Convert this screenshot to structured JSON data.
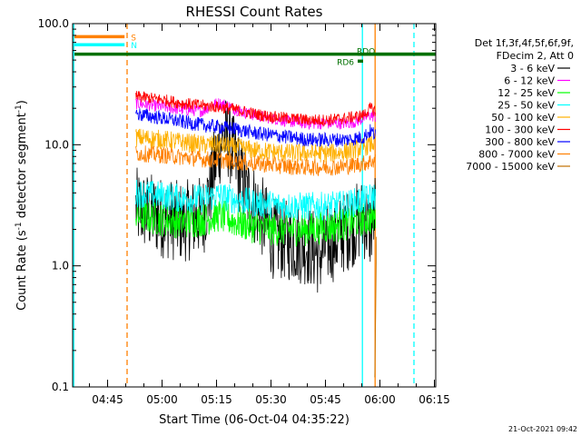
{
  "chart_data": {
    "type": "line",
    "title": "RHESSI Count Rates",
    "xlabel": "Start Time (06-Oct-04 04:35:22)",
    "ylabel_parts": [
      "Count Rate (s",
      "-1",
      " detector segment",
      "-1",
      ")"
    ],
    "yscale": "log",
    "ylim": [
      0.1,
      100
    ],
    "y_ticks": [
      {
        "value": 0.1,
        "label": "0.1"
      },
      {
        "value": 1,
        "label": "1.0"
      },
      {
        "value": 10,
        "label": "10.0"
      },
      {
        "value": 100,
        "label": "100.0"
      }
    ],
    "xlim_minutes": [
      0,
      100
    ],
    "x_ticks": [
      {
        "minute": 9.63,
        "label": "04:45"
      },
      {
        "minute": 24.63,
        "label": "05:00"
      },
      {
        "minute": 39.63,
        "label": "05:15"
      },
      {
        "minute": 54.63,
        "label": "05:30"
      },
      {
        "minute": 69.63,
        "label": "05:45"
      },
      {
        "minute": 84.63,
        "label": "06:00"
      },
      {
        "minute": 99.63,
        "label": "06:15"
      }
    ],
    "legend_header": [
      "Det 1f,3f,4f,5f,6f,9f,",
      "FDecim 2, Att 0"
    ],
    "series": [
      {
        "name": "3 - 6 keV",
        "color": "#000000",
        "start_minute": 17.4,
        "x": [
          17.4,
          25,
          30,
          36,
          38,
          40,
          41.6,
          43,
          45,
          48,
          52,
          55,
          60,
          64,
          66,
          68,
          70,
          72,
          74,
          77,
          80,
          82,
          83.5
        ],
        "y": [
          3.0,
          2.5,
          2.3,
          2.6,
          4.5,
          9.0,
          12.0,
          11.0,
          7.0,
          4.0,
          2.6,
          1.7,
          1.6,
          1.5,
          1.4,
          1.2,
          1.5,
          1.6,
          1.8,
          2.1,
          2.5,
          2.0,
          3.0
        ]
      },
      {
        "name": "6 - 12 keV",
        "color": "#ff00ff",
        "start_minute": 17.4,
        "x": [
          17.4,
          25,
          30,
          36,
          38,
          40,
          42,
          45,
          50,
          55,
          60,
          65,
          70,
          75,
          78,
          80,
          82,
          83.5
        ],
        "y": [
          22.0,
          20.5,
          19.5,
          19.0,
          21.0,
          22.0,
          21.5,
          19.5,
          17.5,
          16.5,
          15.5,
          15.0,
          15.0,
          15.0,
          15.5,
          16.5,
          17.5,
          17.0
        ]
      },
      {
        "name": "12 - 25 keV",
        "color": "#00ff00",
        "start_minute": 17.4,
        "x": [
          17.4,
          25,
          30,
          36,
          40,
          42,
          45,
          50,
          55,
          60,
          65,
          70,
          75,
          80,
          83.5
        ],
        "y": [
          2.6,
          2.4,
          2.3,
          2.4,
          2.6,
          2.5,
          2.3,
          2.1,
          2.0,
          2.0,
          2.0,
          2.1,
          2.2,
          2.4,
          2.5
        ]
      },
      {
        "name": "25 - 50 keV",
        "color": "#00ffff",
        "start_minute": 17.4,
        "x": [
          17.4,
          25,
          30,
          36,
          40,
          42,
          45,
          50,
          55,
          60,
          65,
          70,
          75,
          80,
          83.5
        ],
        "y": [
          4.0,
          3.8,
          3.6,
          3.6,
          3.8,
          3.7,
          3.5,
          3.3,
          3.2,
          3.1,
          3.1,
          3.1,
          3.2,
          3.5,
          3.8
        ]
      },
      {
        "name": "50 - 100 keV",
        "color": "#ffb000",
        "start_minute": 17.4,
        "x": [
          17.4,
          25,
          30,
          36,
          40,
          45,
          50,
          55,
          60,
          65,
          70,
          75,
          80,
          83.5
        ],
        "y": [
          11.5,
          11.0,
          10.5,
          10.0,
          10.0,
          9.5,
          9.0,
          8.7,
          8.5,
          8.5,
          8.5,
          8.7,
          9.5,
          10.5
        ]
      },
      {
        "name": "100 - 300 keV",
        "color": "#ff0000",
        "start_minute": 17.4,
        "x": [
          17.4,
          25,
          30,
          36,
          40,
          45,
          50,
          55,
          60,
          65,
          70,
          75,
          80,
          82,
          83.5
        ],
        "y": [
          25.0,
          23.5,
          22.0,
          21.0,
          20.5,
          19.5,
          18.0,
          17.0,
          16.5,
          16.0,
          16.0,
          16.5,
          17.5,
          20.0,
          19.0
        ]
      },
      {
        "name": "300 - 800 keV",
        "color": "#0000ff",
        "start_minute": 17.4,
        "x": [
          17.4,
          25,
          30,
          36,
          40,
          45,
          50,
          55,
          60,
          65,
          70,
          75,
          80,
          82,
          83.5
        ],
        "y": [
          18.0,
          16.5,
          15.5,
          14.5,
          14.0,
          13.5,
          12.5,
          12.0,
          11.5,
          11.0,
          11.0,
          11.0,
          11.5,
          13.0,
          12.0
        ]
      },
      {
        "name": "800 - 7000 keV",
        "color": "#ff8000",
        "start_minute": 17.4,
        "x": [
          17.4,
          25,
          30,
          36,
          40,
          45,
          50,
          55,
          60,
          65,
          70,
          75,
          80,
          83.5
        ],
        "y": [
          8.5,
          8.2,
          7.9,
          7.6,
          7.5,
          7.2,
          7.0,
          6.8,
          6.6,
          6.5,
          6.5,
          6.6,
          7.0,
          7.5
        ]
      },
      {
        "name": "7000 - 15000 keV",
        "color": "#c07000",
        "start_minute": 83.2,
        "x": [
          83.2,
          83.5,
          83.7
        ],
        "y": [
          0.12,
          0.5,
          2.0
        ]
      }
    ],
    "status_bars": [
      {
        "label": "S",
        "color": "#ff8000",
        "value": 78
      },
      {
        "label": "N",
        "color": "#00ffff",
        "value": 67
      },
      {
        "label": "",
        "color": "#007000",
        "value": 56
      },
      {
        "label": "RDO",
        "color": "#007000",
        "value": 56
      },
      {
        "label": "RD6",
        "color": "#007000",
        "value": 49
      }
    ],
    "vertical_markers": [
      {
        "minute": 0.3,
        "color": "#00ffff",
        "style": "solid"
      },
      {
        "minute": 15.0,
        "color": "#ff8000",
        "style": "dashed"
      },
      {
        "minute": 79.8,
        "color": "#00ffff",
        "style": "solid"
      },
      {
        "minute": 83.3,
        "color": "#ff8000",
        "style": "solid"
      },
      {
        "minute": 94.0,
        "color": "#00ffff",
        "style": "dashed"
      }
    ],
    "grid": false
  },
  "footer": {
    "timestamp": "21-Oct-2021 09:42"
  }
}
